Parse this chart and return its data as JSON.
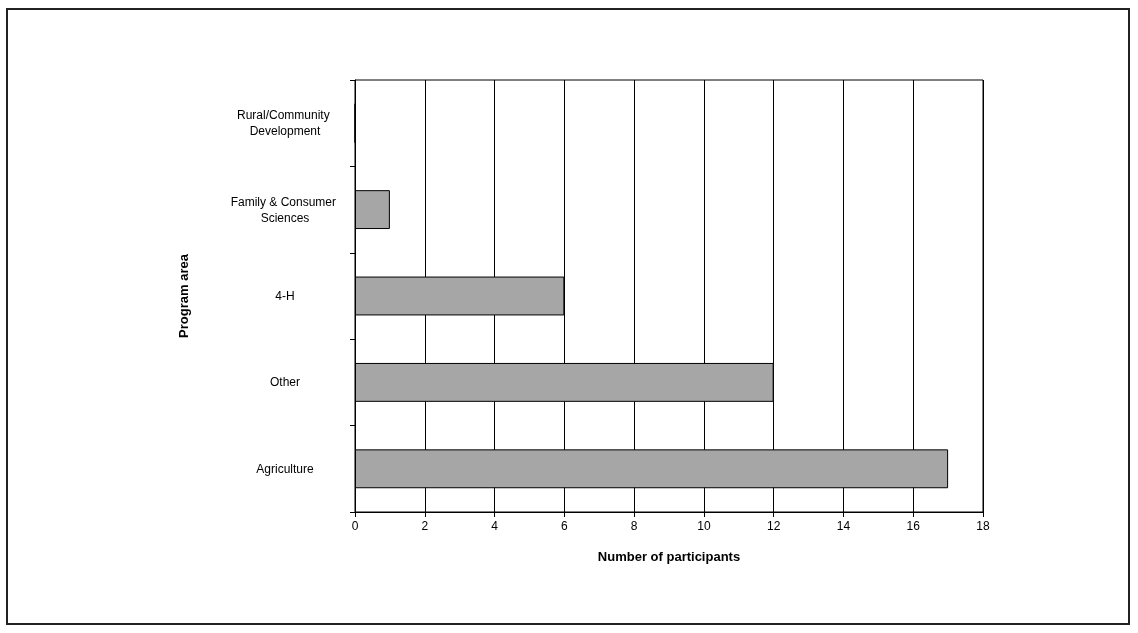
{
  "chart_data": {
    "type": "bar",
    "orientation": "horizontal",
    "xlabel": "Number of participants",
    "ylabel": "Program area",
    "categories": [
      "Rural/Community Development",
      "Family & Consumer Sciences",
      "4-H",
      "Other",
      "Agriculture"
    ],
    "values": [
      0,
      1,
      6,
      12,
      17
    ],
    "color": "#a6a6a6",
    "xlim": [
      0,
      18
    ],
    "xticks": [
      0,
      2,
      4,
      6,
      8,
      10,
      12,
      14,
      16,
      18
    ],
    "grid": "x"
  }
}
